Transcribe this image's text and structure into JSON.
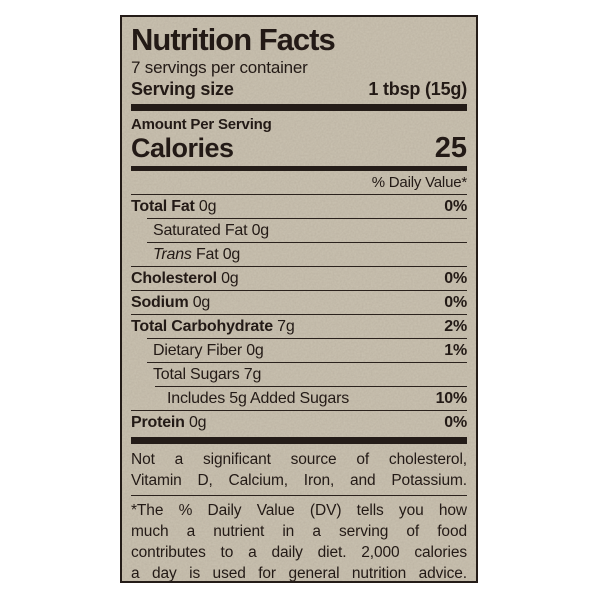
{
  "colors": {
    "paper": "#cbc3b2",
    "ink": "#241c18",
    "page_background": "#ffffff"
  },
  "label": {
    "title": "Nutrition Facts",
    "servings_per_container": "7 servings per container",
    "serving_size_label": "Serving size",
    "serving_size_value": "1 tbsp (15g)",
    "amount_per_serving": "Amount Per Serving",
    "calories_label": "Calories",
    "calories_value": "25",
    "daily_value_header": "% Daily Value*",
    "rows": [
      {
        "bold": "Total Fat",
        "rest": " 0g",
        "dv": "0%",
        "indent": 0
      },
      {
        "rest": "Saturated Fat 0g",
        "dv": "",
        "indent": 1
      },
      {
        "italic": "Trans",
        "rest": " Fat 0g",
        "dv": "",
        "indent": 1
      },
      {
        "bold": "Cholesterol",
        "rest": " 0g",
        "dv": "0%",
        "indent": 0
      },
      {
        "bold": "Sodium",
        "rest": " 0g",
        "dv": "0%",
        "indent": 0
      },
      {
        "bold": "Total Carbohydrate",
        "rest": " 7g",
        "dv": "2%",
        "indent": 0
      },
      {
        "rest": "Dietary Fiber 0g",
        "dv": "1%",
        "indent": 1
      },
      {
        "rest": "Total Sugars 7g",
        "dv": "",
        "indent": 1
      },
      {
        "rest": "Includes 5g Added Sugars",
        "dv": "10%",
        "indent": 2
      },
      {
        "bold": "Protein",
        "rest": " 0g",
        "dv": "0%",
        "indent": 0
      }
    ],
    "not_significant_note_lines": [
      "Not a significant source of cholesterol,",
      "Vitamin D, Calcium, Iron, and Potassium."
    ],
    "footnote_lines": [
      "*The % Daily Value (DV) tells you how",
      "much a nutrient in a serving of food",
      "contributes to a daily diet. 2,000 calories",
      "a day is used for general nutrition advice."
    ]
  }
}
